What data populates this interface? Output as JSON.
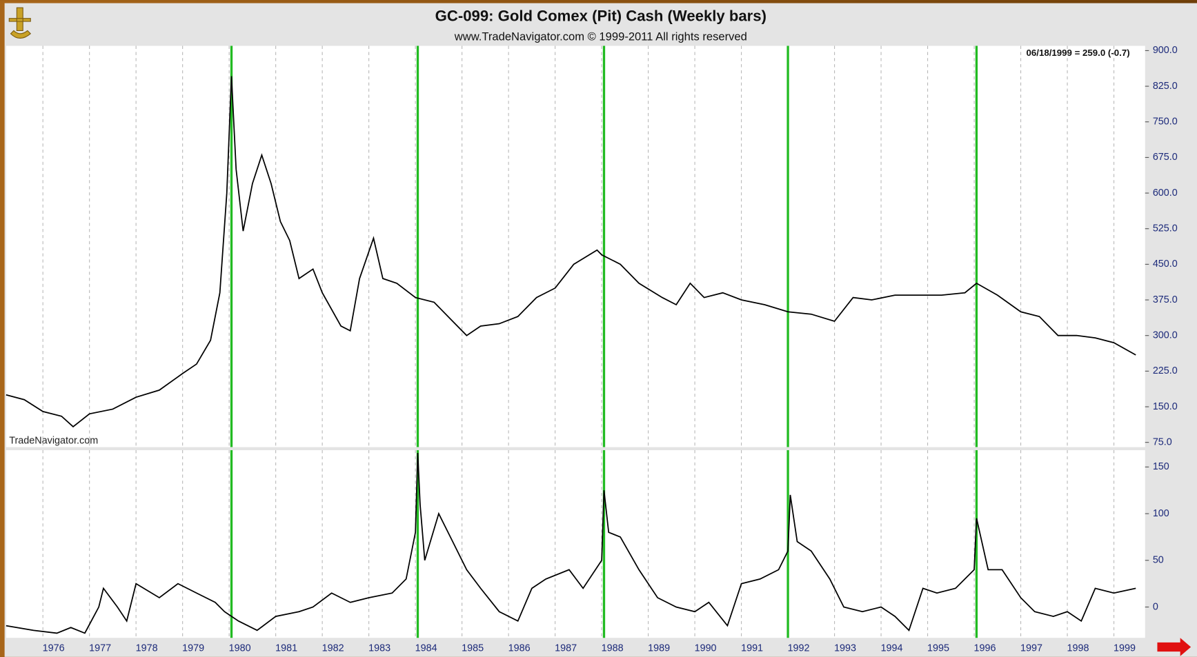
{
  "chart_data": [
    {
      "type": "line",
      "title": "GC-099:  Gold Comex (Pit) Cash  (Weekly bars)",
      "subtitle": "www.TradeNavigator.com © 1999-2011 All rights reserved",
      "annotation": "06/18/1999 = 259.0 (-0.7)",
      "watermark": "TradeNavigator.com",
      "x": [
        1975.21,
        1975.6,
        1976.0,
        1976.4,
        1976.65,
        1977.0,
        1977.5,
        1978.0,
        1978.5,
        1979.0,
        1979.3,
        1979.6,
        1979.8,
        1979.95,
        1980.05,
        1980.15,
        1980.3,
        1980.5,
        1980.7,
        1980.9,
        1981.1,
        1981.3,
        1981.5,
        1981.8,
        1982.0,
        1982.4,
        1982.6,
        1982.8,
        1983.1,
        1983.3,
        1983.6,
        1984.0,
        1984.4,
        1984.7,
        1985.1,
        1985.4,
        1985.8,
        1986.2,
        1986.6,
        1987.0,
        1987.4,
        1987.9,
        1988.0,
        1988.4,
        1988.8,
        1989.3,
        1989.6,
        1989.9,
        1990.2,
        1990.6,
        1991.0,
        1991.5,
        1992.0,
        1992.5,
        1993.0,
        1993.4,
        1993.8,
        1994.3,
        1994.8,
        1995.3,
        1995.8,
        1996.05,
        1996.5,
        1997.0,
        1997.4,
        1997.8,
        1998.2,
        1998.6,
        1999.0,
        1999.47
      ],
      "values": [
        175,
        165,
        140,
        130,
        108,
        135,
        145,
        170,
        185,
        220,
        240,
        290,
        390,
        600,
        846,
        650,
        520,
        620,
        680,
        620,
        540,
        500,
        420,
        440,
        390,
        320,
        310,
        420,
        505,
        420,
        410,
        380,
        370,
        340,
        300,
        320,
        325,
        340,
        380,
        400,
        450,
        480,
        470,
        450,
        410,
        380,
        365,
        410,
        380,
        390,
        375,
        365,
        350,
        345,
        330,
        380,
        375,
        385,
        385,
        385,
        390,
        410,
        385,
        350,
        340,
        300,
        300,
        295,
        285,
        259
      ],
      "color": "#000000",
      "xlim": [
        1975.21,
        1999.67
      ],
      "xticks": [
        1976,
        1977,
        1978,
        1979,
        1980,
        1981,
        1982,
        1983,
        1984,
        1985,
        1986,
        1987,
        1988,
        1989,
        1990,
        1991,
        1992,
        1993,
        1994,
        1995,
        1996,
        1997,
        1998,
        1999
      ],
      "ylim": [
        65,
        910
      ],
      "yticks": [
        {
          "value": 75,
          "label": "75.0"
        },
        {
          "value": 150,
          "label": "150.0"
        },
        {
          "value": 225,
          "label": "225.0"
        },
        {
          "value": 300,
          "label": "300.0"
        },
        {
          "value": 375,
          "label": "375.0"
        },
        {
          "value": 450,
          "label": "450.0"
        },
        {
          "value": 525,
          "label": "525.0"
        },
        {
          "value": 600,
          "label": "600.0"
        },
        {
          "value": 675,
          "label": "675.0"
        },
        {
          "value": 750,
          "label": "750.0"
        },
        {
          "value": 825,
          "label": "825.0"
        },
        {
          "value": 900,
          "label": "900.0"
        }
      ],
      "vlines": [
        1980.05,
        1984.05,
        1988.05,
        1992.0,
        1996.05
      ],
      "vline_color": "#22bb22",
      "grid": true
    },
    {
      "type": "line",
      "x": [
        1975.21,
        1975.8,
        1976.3,
        1976.6,
        1976.9,
        1977.2,
        1977.3,
        1977.6,
        1977.8,
        1978.0,
        1978.5,
        1978.9,
        1979.3,
        1979.7,
        1979.9,
        1980.2,
        1980.6,
        1981.0,
        1981.5,
        1981.8,
        1982.2,
        1982.6,
        1983.0,
        1983.5,
        1983.8,
        1984.0,
        1984.05,
        1984.1,
        1984.2,
        1984.5,
        1984.8,
        1985.1,
        1985.4,
        1985.8,
        1986.2,
        1986.5,
        1986.8,
        1987.3,
        1987.6,
        1988.0,
        1988.05,
        1988.15,
        1988.4,
        1988.8,
        1989.2,
        1989.6,
        1990.0,
        1990.3,
        1990.7,
        1991.0,
        1991.4,
        1991.8,
        1992.0,
        1992.05,
        1992.2,
        1992.5,
        1992.9,
        1993.2,
        1993.6,
        1994.0,
        1994.3,
        1994.6,
        1994.9,
        1995.2,
        1995.6,
        1996.0,
        1996.05,
        1996.3,
        1996.6,
        1997.0,
        1997.3,
        1997.7,
        1998.0,
        1998.3,
        1998.6,
        1999.0,
        1999.47
      ],
      "values": [
        -20,
        -25,
        -28,
        -22,
        -28,
        0,
        20,
        0,
        -15,
        25,
        10,
        25,
        15,
        5,
        -5,
        -15,
        -25,
        -10,
        -5,
        0,
        15,
        5,
        10,
        15,
        30,
        80,
        165,
        110,
        50,
        100,
        70,
        40,
        20,
        -5,
        -15,
        20,
        30,
        40,
        20,
        50,
        125,
        80,
        75,
        40,
        10,
        0,
        -5,
        5,
        -20,
        25,
        30,
        40,
        60,
        120,
        70,
        60,
        30,
        0,
        -5,
        0,
        -10,
        -25,
        20,
        15,
        20,
        40,
        95,
        40,
        40,
        10,
        -5,
        -10,
        -5,
        -15,
        20,
        15,
        20
      ],
      "color": "#000000",
      "xlim": [
        1975.21,
        1999.67
      ],
      "xticks": [
        1976,
        1977,
        1978,
        1979,
        1980,
        1981,
        1982,
        1983,
        1984,
        1985,
        1986,
        1987,
        1988,
        1989,
        1990,
        1991,
        1992,
        1993,
        1994,
        1995,
        1996,
        1997,
        1998,
        1999
      ],
      "ylim": [
        -33,
        168
      ],
      "yticks": [
        0,
        50,
        100,
        150
      ],
      "vlines": [
        1980.05,
        1984.05,
        1988.05,
        1992.0,
        1996.05
      ],
      "vline_color": "#22bb22",
      "grid": true
    }
  ]
}
